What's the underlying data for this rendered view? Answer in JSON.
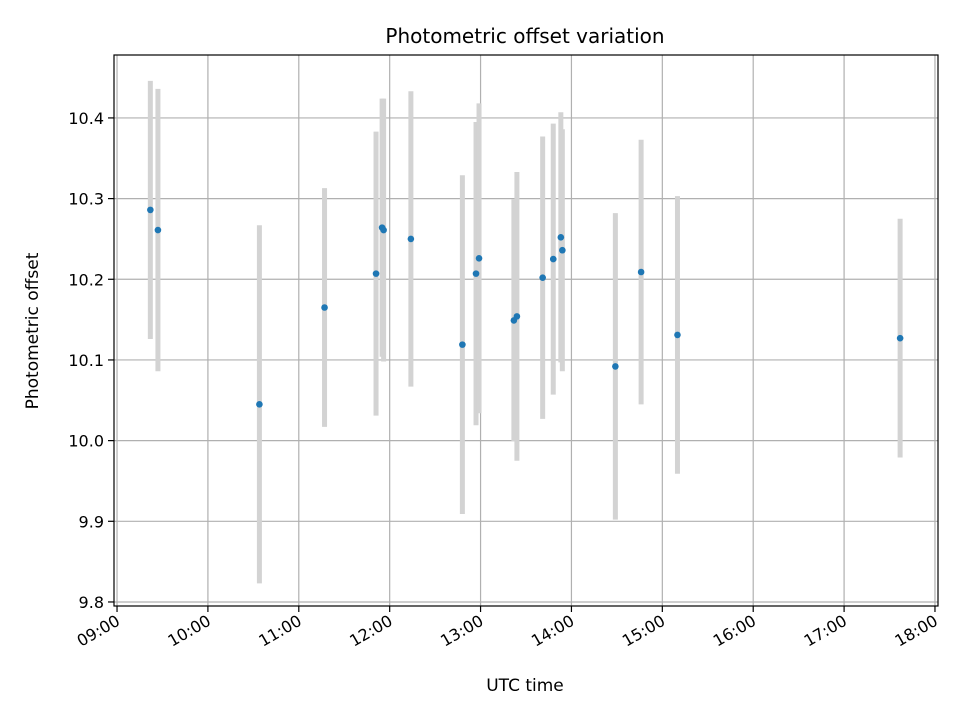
{
  "chart_data": {
    "type": "scatter",
    "title": "Photometric offset variation",
    "xlabel": "UTC time",
    "ylabel": "Photometric offset",
    "xlim": [
      "08:58",
      "18:02"
    ],
    "ylim": [
      9.795,
      10.478
    ],
    "x_ticks": [
      "09:00",
      "10:00",
      "11:00",
      "12:00",
      "13:00",
      "14:00",
      "15:00",
      "16:00",
      "17:00",
      "18:00"
    ],
    "y_ticks": [
      "9.8",
      "9.9",
      "10.0",
      "10.1",
      "10.2",
      "10.3",
      "10.4"
    ],
    "grid": true,
    "colors": {
      "point": "#1f77b4",
      "errorbar": "#d3d3d3",
      "grid": "#b0b0b0"
    },
    "points": [
      {
        "x": "09:22",
        "y": 10.286,
        "err": 0.16
      },
      {
        "x": "09:27",
        "y": 10.261,
        "err": 0.175
      },
      {
        "x": "10:34",
        "y": 10.045,
        "err": 0.222
      },
      {
        "x": "11:17",
        "y": 10.165,
        "err": 0.148
      },
      {
        "x": "11:51",
        "y": 10.207,
        "err": 0.176
      },
      {
        "x": "11:55",
        "y": 10.264,
        "err": 0.16
      },
      {
        "x": "11:56",
        "y": 10.261,
        "err": 0.163
      },
      {
        "x": "12:14",
        "y": 10.25,
        "err": 0.183
      },
      {
        "x": "12:48",
        "y": 10.119,
        "err": 0.21
      },
      {
        "x": "12:57",
        "y": 10.207,
        "err": 0.188
      },
      {
        "x": "12:59",
        "y": 10.226,
        "err": 0.192
      },
      {
        "x": "13:22",
        "y": 10.149,
        "err": 0.15
      },
      {
        "x": "13:24",
        "y": 10.154,
        "err": 0.179
      },
      {
        "x": "13:41",
        "y": 10.202,
        "err": 0.175
      },
      {
        "x": "13:48",
        "y": 10.225,
        "err": 0.168
      },
      {
        "x": "13:53",
        "y": 10.252,
        "err": 0.155
      },
      {
        "x": "13:54",
        "y": 10.236,
        "err": 0.15
      },
      {
        "x": "14:29",
        "y": 10.092,
        "err": 0.19
      },
      {
        "x": "14:46",
        "y": 10.209,
        "err": 0.164
      },
      {
        "x": "15:10",
        "y": 10.131,
        "err": 0.172
      },
      {
        "x": "17:37",
        "y": 10.127,
        "err": 0.148
      }
    ]
  }
}
